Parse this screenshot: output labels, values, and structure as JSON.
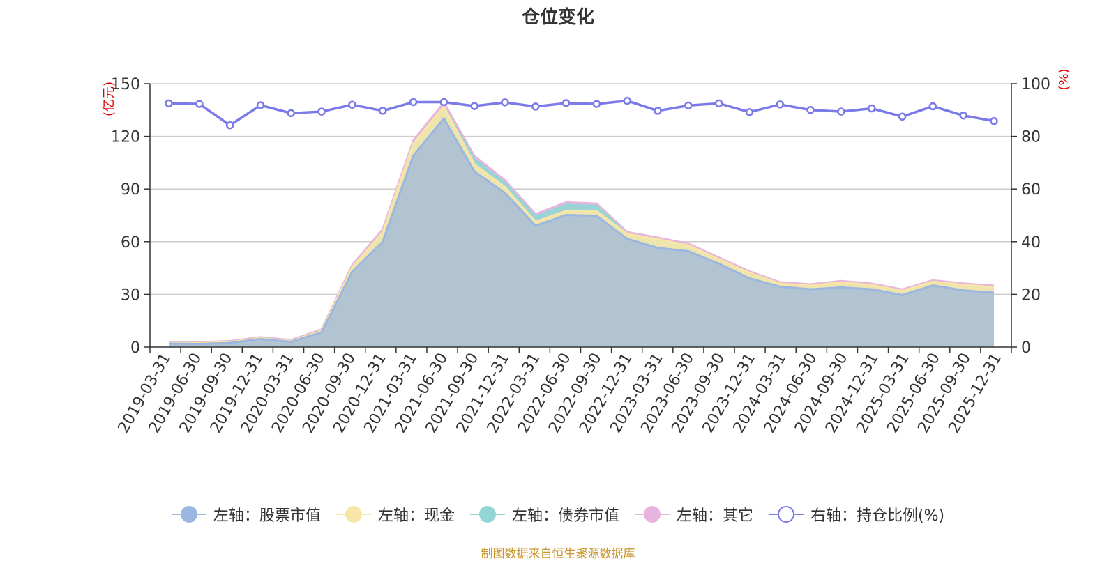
{
  "title": "仓位变化",
  "source": "制图数据来自恒生聚源数据库",
  "legend": [
    {
      "label": "左轴：股票市值",
      "color": "#9bb7e0",
      "hollow": false
    },
    {
      "label": "左轴：现金",
      "color": "#f7e6a8",
      "hollow": false
    },
    {
      "label": "左轴：债券市值",
      "color": "#93d6d6",
      "hollow": false
    },
    {
      "label": "左轴：其它",
      "color": "#e8b4dd",
      "hollow": false
    },
    {
      "label": "右轴：持仓比例(%)",
      "color": "#7a7ae8",
      "hollow": true
    }
  ],
  "chart_data": {
    "type": "area",
    "title": "仓位变化",
    "ylabel_left": "(亿元)",
    "ylabel_right": "(%)",
    "ylim_left": [
      0,
      150
    ],
    "ylim_right": [
      0,
      100
    ],
    "yticks_left": [
      0,
      30,
      60,
      90,
      120,
      150
    ],
    "yticks_right": [
      0,
      20,
      40,
      60,
      80,
      100
    ],
    "grid": true,
    "legend_position": "bottom",
    "categories": [
      "2019-03-31",
      "2019-06-30",
      "2019-09-30",
      "2019-12-31",
      "2020-03-31",
      "2020-06-30",
      "2020-09-30",
      "2020-12-31",
      "2021-03-31",
      "2021-06-30",
      "2021-09-30",
      "2021-12-31",
      "2022-03-31",
      "2022-06-30",
      "2022-09-30",
      "2022-12-31",
      "2023-03-31",
      "2023-06-30",
      "2023-09-30",
      "2023-12-31",
      "2024-03-31",
      "2024-06-30",
      "2024-09-30",
      "2024-12-31",
      "2025-03-31",
      "2025-06-30",
      "2025-09-30",
      "2025-12-31"
    ],
    "series": [
      {
        "name": "左轴：股票市值",
        "axis": "left",
        "stacked": true,
        "color": "#9bb7e0",
        "values": [
          2.0,
          1.8,
          2.3,
          4.6,
          3.0,
          8.4,
          42.9,
          60.0,
          109.0,
          130.2,
          100.0,
          87.7,
          69.1,
          75.2,
          74.7,
          61.6,
          56.5,
          54.6,
          47.5,
          39.1,
          34.4,
          32.9,
          34.0,
          32.9,
          29.6,
          35.1,
          32.3,
          30.9
        ]
      },
      {
        "name": "左轴：现金",
        "axis": "left",
        "stacked": true,
        "color": "#f7e6a8",
        "values": [
          0.3,
          0.4,
          0.5,
          0.4,
          0.4,
          0.8,
          2.5,
          5.3,
          6.7,
          6.8,
          4.0,
          3.3,
          2.2,
          2.3,
          2.7,
          2.8,
          4.8,
          3.3,
          2.5,
          3.1,
          1.7,
          2.0,
          2.8,
          2.4,
          2.4,
          2.1,
          3.1,
          3.2
        ]
      },
      {
        "name": "左轴：债券市值",
        "axis": "left",
        "stacked": true,
        "color": "#93d6d6",
        "values": [
          0,
          0,
          0,
          0,
          0,
          0,
          0,
          0,
          0,
          0,
          3.0,
          2.5,
          3.0,
          3.5,
          3.0,
          0,
          0,
          0,
          0,
          0,
          0,
          0,
          0,
          0,
          0,
          0,
          0,
          0
        ]
      },
      {
        "name": "左轴：其它",
        "axis": "left",
        "stacked": true,
        "color": "#e8b4dd",
        "values": [
          0.5,
          0.5,
          0.6,
          0.6,
          0.6,
          0.8,
          1.2,
          1.7,
          1.9,
          2.2,
          1.8,
          1.5,
          1.4,
          1.4,
          1.3,
          1.1,
          1.0,
          1.0,
          1.0,
          0.9,
          0.8,
          0.8,
          0.8,
          0.8,
          0.8,
          0.8,
          0.8,
          0.8
        ]
      },
      {
        "name": "右轴：持仓比例(%)",
        "axis": "right",
        "type": "line",
        "color": "#7a7ae8",
        "values": [
          92.5,
          92.3,
          84.2,
          91.8,
          88.8,
          89.4,
          92.0,
          89.7,
          93.0,
          93.0,
          91.5,
          92.9,
          91.3,
          92.6,
          92.3,
          93.5,
          89.7,
          91.7,
          92.5,
          89.2,
          92.1,
          90.0,
          89.4,
          90.6,
          87.5,
          91.4,
          87.9,
          85.8
        ]
      }
    ]
  }
}
